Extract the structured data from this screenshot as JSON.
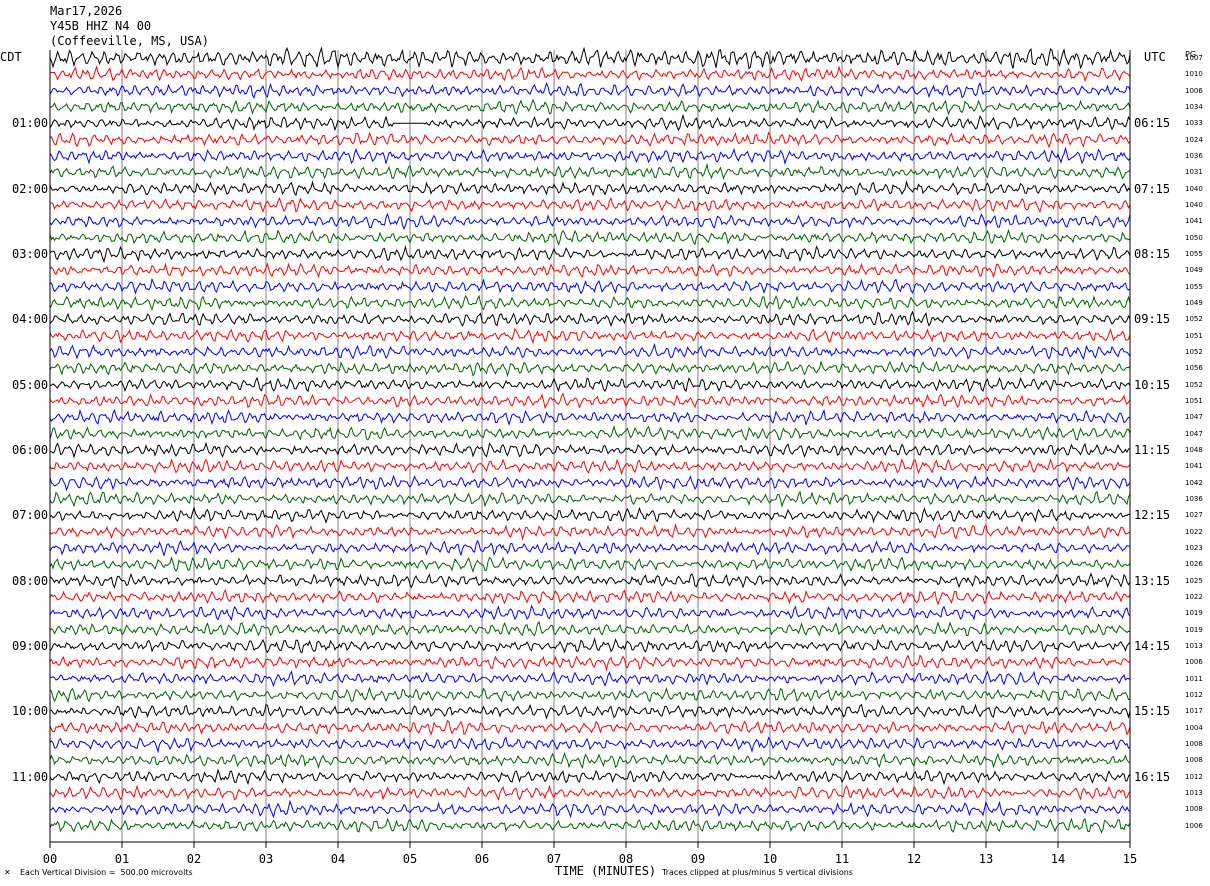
{
  "header": {
    "date": "Mar17,2026",
    "station": "Y45B HHZ N4 00",
    "location": "(Coffeeville, MS, USA)"
  },
  "tz": {
    "left": "CDT",
    "right": "UTC",
    "right_corner": "PG"
  },
  "chart_data": {
    "type": "helicorder",
    "xlabel": "TIME (MINUTES)",
    "x_ticks": [
      "00",
      "01",
      "02",
      "03",
      "04",
      "05",
      "06",
      "07",
      "08",
      "09",
      "10",
      "11",
      "12",
      "13",
      "14",
      "15"
    ],
    "xlim": [
      0,
      15
    ],
    "trace_colors": [
      "#000000",
      "#ff0000",
      "#0000ff",
      "#006400"
    ],
    "left_hour_labels": [
      "01:00",
      "02:00",
      "03:00",
      "04:00",
      "05:00",
      "06:00",
      "07:00",
      "08:00",
      "09:00",
      "10:00",
      "11:00"
    ],
    "right_hour_labels": [
      "06:15",
      "07:15",
      "08:15",
      "09:15",
      "10:15",
      "11:15",
      "12:15",
      "13:15",
      "14:15",
      "15:15",
      "16:15"
    ],
    "trace_values": [
      "1007",
      "1010",
      "1006",
      "1034",
      "1033",
      "1024",
      "1036",
      "1031",
      "1040",
      "1040",
      "1041",
      "1050",
      "1055",
      "1049",
      "1055",
      "1049",
      "1052",
      "1051",
      "1052",
      "1056",
      "1052",
      "1051",
      "1047",
      "1047",
      "1048",
      "1041",
      "1042",
      "1036",
      "1027",
      "1022",
      "1023",
      "1026",
      "1025",
      "1022",
      "1019",
      "1019",
      "1013",
      "1006",
      "1011",
      "1012",
      "1017",
      "1004",
      "1008",
      "1008",
      "1012",
      "1013",
      "1008",
      "1006"
    ],
    "gap": {
      "trace": 4,
      "from_minute": 4.75,
      "to_minute": 5.2
    }
  },
  "footer": {
    "scale": "Each Vertical Division =  500.00 microvolts",
    "clip": "Traces clipped at plus/minus 5 vertical divisions"
  }
}
